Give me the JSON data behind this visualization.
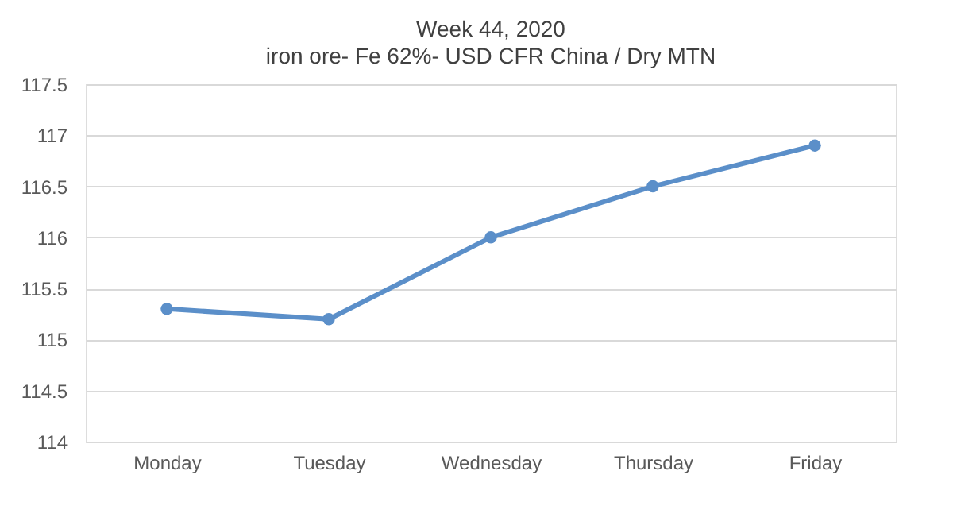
{
  "chart_data": {
    "type": "line",
    "title": "Week 44, 2020",
    "subtitle": "iron ore- Fe 62%- USD CFR China / Dry MTN",
    "categories": [
      "Monday",
      "Tuesday",
      "Wednesday",
      "Thursday",
      "Friday"
    ],
    "series": [
      {
        "color": "#5b8fc9",
        "values": [
          115.3,
          115.2,
          116,
          116.5,
          116.9
        ]
      }
    ],
    "ylim": [
      114,
      117.5
    ],
    "yticks": [
      114,
      114.5,
      115,
      115.5,
      116,
      116.5,
      117,
      117.5
    ],
    "grid": "y",
    "marker": "circle",
    "line_style": "solid"
  }
}
